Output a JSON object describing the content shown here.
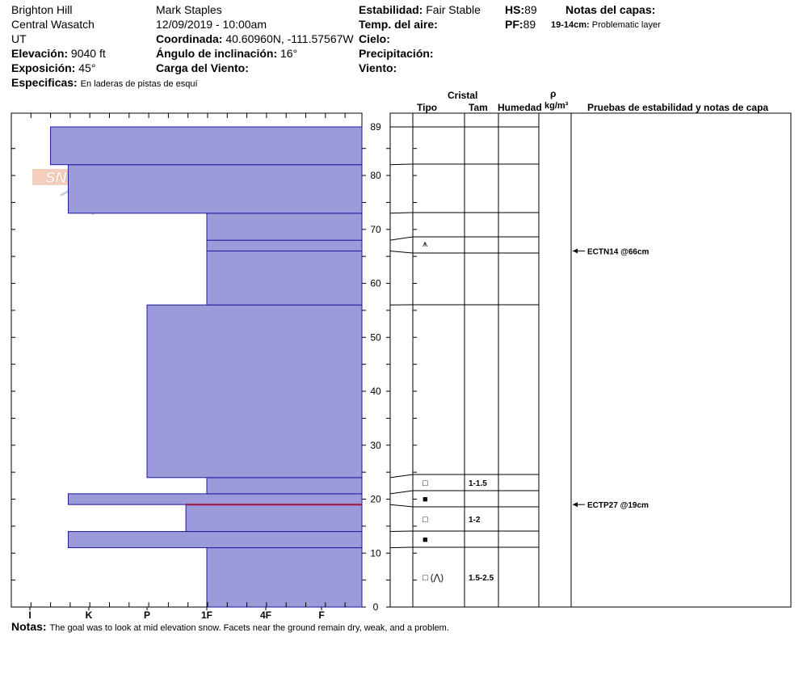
{
  "header": {
    "location": "Brighton Hill",
    "range": "Central Wasatch",
    "state": "UT",
    "elevation_label": "Elevación:",
    "elevation_value": "9040 ft",
    "aspect_label": "Exposición:",
    "aspect_value": "45°",
    "specifics_label": "Especificas:",
    "specifics_value": "En laderas de pistas de esquí",
    "observer": "Mark Staples",
    "datetime": "12/09/2019 - 10:00am",
    "coord_label": "Coordinada:",
    "coord_value": "40.60960N, -111.57567W",
    "slope_label": "Ángulo de inclinación:",
    "slope_value": "16°",
    "wind_load_label": "Carga del Viento:",
    "stability_label": "Estabilidad:",
    "stability_value": "Fair Stable",
    "air_temp_label": "Temp. del aire:",
    "sky_label": "Cielo:",
    "precip_label": "Precipitación:",
    "wind_label": "Viento:",
    "hs_label": "HS:",
    "hs_value": "89",
    "pf_label": "PF:",
    "pf_value": "89",
    "layer_notes_label": "Notas del capas:",
    "layer_note_range": "19-14cm:",
    "layer_note_text": "Problematic layer"
  },
  "columns": {
    "cristal": "Cristal",
    "tipo": "Tipo",
    "tam": "Tam",
    "humedad": "Humedad",
    "rho": "ρ",
    "density_unit": "kg/m³",
    "tests": "Pruebas de estabilidad y notas de capa"
  },
  "notes": {
    "label": "Notas:",
    "text": "The goal was to look at mid elevation snow. Facets near the ground remain dry, weak, and a problem."
  },
  "logo_text": "SNOW PILOT",
  "colors": {
    "layer_fill": "#9b9bd9",
    "layer_stroke": "#1a1aa0",
    "problem_layer": "#a0103a"
  },
  "chart_data": {
    "type": "snow_profile",
    "hardness_scale": [
      "I",
      "K",
      "P",
      "1F",
      "4F",
      "F"
    ],
    "depth_ticks": [
      0,
      10,
      20,
      30,
      40,
      50,
      60,
      70,
      80,
      89
    ],
    "depth_range": [
      0,
      89
    ],
    "depth_unit": "cm",
    "layers": [
      {
        "bottom": 0,
        "top": 11,
        "hardness": 3.0
      },
      {
        "bottom": 11,
        "top": 14,
        "hardness": 0.65
      },
      {
        "bottom": 14,
        "top": 19,
        "hardness": 2.65
      },
      {
        "bottom": 19,
        "top": 21,
        "hardness": 0.65
      },
      {
        "bottom": 21,
        "top": 24,
        "hardness": 3.0
      },
      {
        "bottom": 24,
        "top": 56,
        "hardness": 2.0
      },
      {
        "bottom": 56,
        "top": 66,
        "hardness": 3.0
      },
      {
        "bottom": 66,
        "top": 68,
        "hardness": 3.0
      },
      {
        "bottom": 68,
        "top": 73,
        "hardness": 3.0
      },
      {
        "bottom": 73,
        "top": 82,
        "hardness": 0.65
      },
      {
        "bottom": 82,
        "top": 89,
        "hardness": 0.35
      }
    ],
    "problem_layer_depth": 19,
    "crystals": [
      {
        "depth": 67,
        "symbol": "⩚",
        "size": ""
      },
      {
        "depth": 23,
        "symbol": "□",
        "size": "1-1.5"
      },
      {
        "depth": 20,
        "symbol": "■",
        "size": ""
      },
      {
        "depth": 16,
        "symbol": "□",
        "size": "1-2"
      },
      {
        "depth": 12.5,
        "symbol": "■",
        "size": ""
      },
      {
        "depth": 5,
        "symbol": "□ (⋀)",
        "size": "1.5-2.5"
      }
    ],
    "stability_tests": [
      {
        "depth": 66,
        "label": "ECTN14 @66cm"
      },
      {
        "depth": 19,
        "label": "ECTP27 @19cm"
      }
    ]
  }
}
